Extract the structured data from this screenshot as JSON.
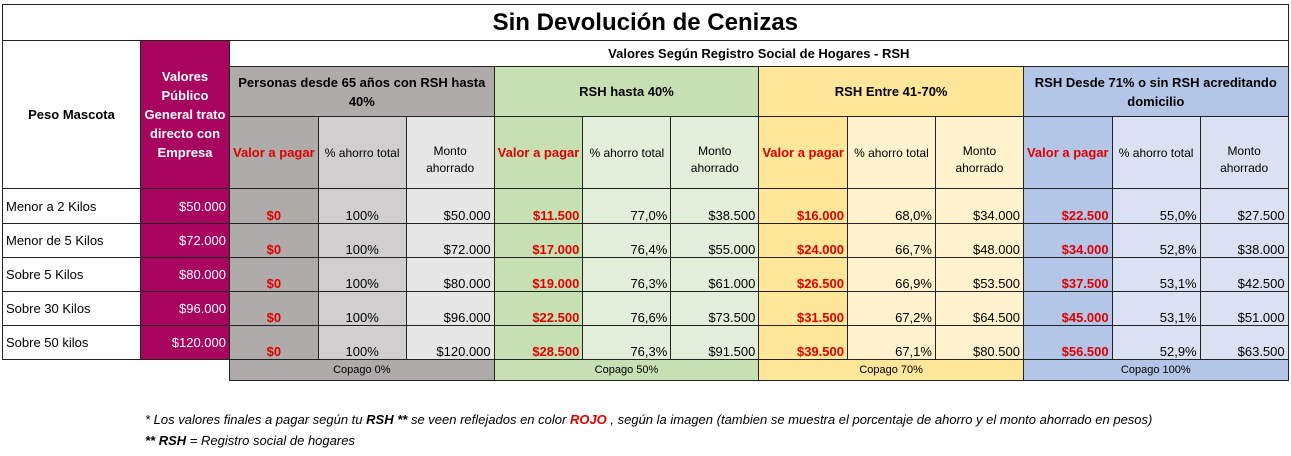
{
  "title": "Sin Devolución de Cenizas",
  "header": {
    "peso": "Peso Mascota",
    "publico": "Valores Público General trato directo con Empresa",
    "rsh_group": "Valores Según Registro Social de Hogares - RSH",
    "groups": [
      "Personas desde 65 años con RSH hasta 40%",
      "RSH hasta 40%",
      "RSH  Entre 41-70%",
      "RSH Desde 71% o sin RSH acreditando domicilio"
    ],
    "sub": [
      "Valor a pagar",
      "% ahorro total",
      "Monto ahorrado"
    ]
  },
  "rows": [
    {
      "peso": "Menor a 2 Kilos",
      "publico": "$50.000",
      "g": [
        [
          "$0",
          "100%",
          "$50.000"
        ],
        [
          "$11.500",
          "77,0%",
          "$38.500"
        ],
        [
          "$16.000",
          "68,0%",
          "$34.000"
        ],
        [
          "$22.500",
          "55,0%",
          "$27.500"
        ]
      ]
    },
    {
      "peso": "Menor de 5 Kilos",
      "publico": "$72.000",
      "g": [
        [
          "$0",
          "100%",
          "$72.000"
        ],
        [
          "$17.000",
          "76,4%",
          "$55.000"
        ],
        [
          "$24.000",
          "66,7%",
          "$48.000"
        ],
        [
          "$34.000",
          "52,8%",
          "$38.000"
        ]
      ]
    },
    {
      "peso": "Sobre 5 Kilos",
      "publico": "$80.000",
      "g": [
        [
          "$0",
          "100%",
          "$80.000"
        ],
        [
          "$19.000",
          "76,3%",
          "$61.000"
        ],
        [
          "$26.500",
          "66,9%",
          "$53.500"
        ],
        [
          "$37.500",
          "53,1%",
          "$42.500"
        ]
      ]
    },
    {
      "peso": "Sobre 30 Kilos",
      "publico": "$96.000",
      "g": [
        [
          "$0",
          "100%",
          "$96.000"
        ],
        [
          "$22.500",
          "76,6%",
          "$73.500"
        ],
        [
          "$31.500",
          "67,2%",
          "$64.500"
        ],
        [
          "$45.000",
          "53,1%",
          "$51.000"
        ]
      ]
    },
    {
      "peso": "Sobre 50 kilos",
      "publico": "$120.000",
      "g": [
        [
          "$0",
          "100%",
          "$120.000"
        ],
        [
          "$28.500",
          "76,3%",
          "$91.500"
        ],
        [
          "$39.500",
          "67,1%",
          "$80.500"
        ],
        [
          "$56.500",
          "52,9%",
          "$63.500"
        ]
      ]
    }
  ],
  "copago": [
    "Copago 0%",
    "Copago 50%",
    "Copago 70%",
    "Copago 100%"
  ],
  "notes": {
    "n1_a": "*  Los valores finales a pagar según tu ",
    "n1_rsh": "RSH **",
    "n1_b": "  se veen reflejados en color ",
    "n1_rojo": "ROJO",
    "n1_c": " , según la imagen (tambien se muestra el porcentaje de ahorro y el monto ahorrado en pesos)",
    "n2_a": "** ",
    "n2_rsh": "RSH",
    "n2_b": "  = Registro social de hogares"
  }
}
